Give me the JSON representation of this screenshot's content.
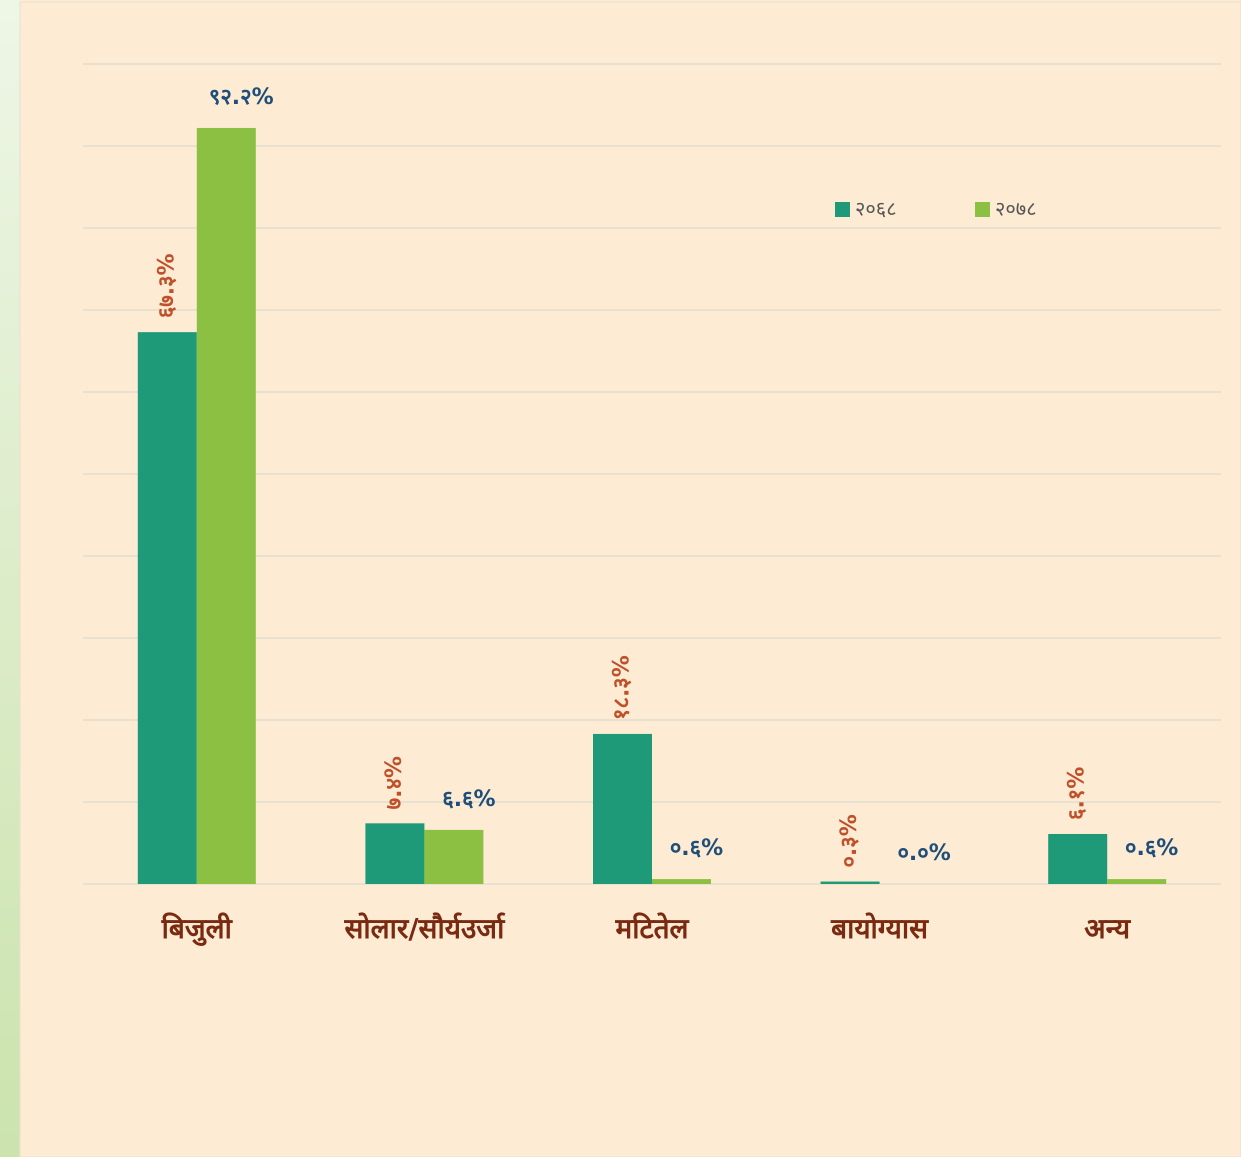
{
  "chart_data": {
    "type": "bar",
    "categories": [
      "बिजुली",
      "सोलार/सौर्यउर्जा",
      "मटितेल",
      "बायोग्यास",
      "अन्य"
    ],
    "series": [
      {
        "name": "२०६८",
        "color": "#1f9a78",
        "values": [
          67.3,
          7.4,
          18.3,
          0.3,
          6.1
        ],
        "value_labels": [
          "६७.३%",
          "७.४%",
          "१८.३%",
          "०.३%",
          "६.१%"
        ]
      },
      {
        "name": "२०७८",
        "color": "#8bc043",
        "values": [
          92.2,
          6.6,
          0.6,
          0.0,
          0.6
        ],
        "value_labels": [
          "९२.२%",
          "६.६%",
          "०.६%",
          "०.०%",
          "०.६%"
        ]
      }
    ],
    "ylim": [
      0,
      100
    ],
    "yticks": [
      0,
      10,
      20,
      30,
      40,
      50,
      60,
      70,
      80,
      90,
      100
    ],
    "grid": true,
    "legend": "top-right"
  }
}
